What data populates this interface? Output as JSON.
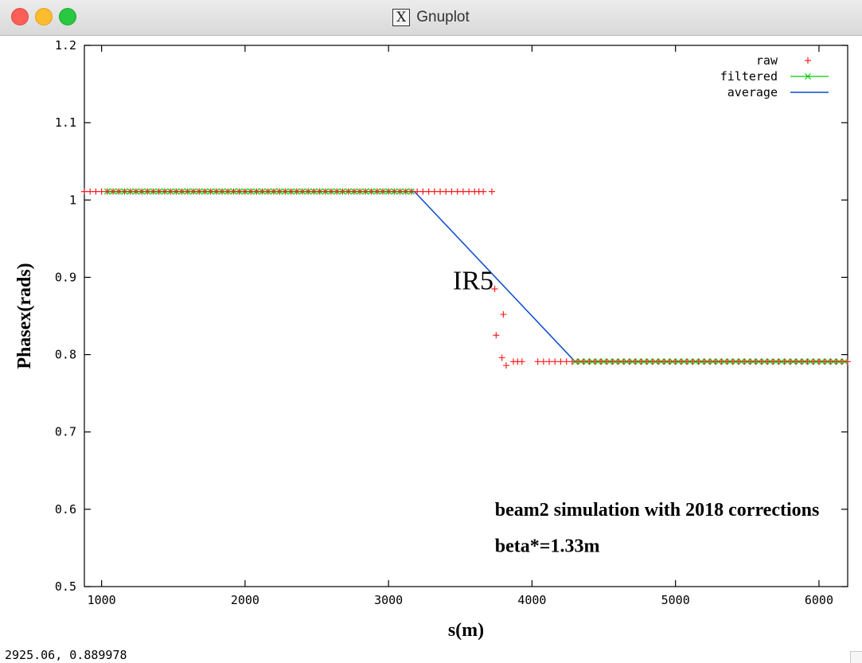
{
  "window": {
    "title": "Gnuplot",
    "icon": "x11-icon",
    "icon_glyph": "X",
    "status_text": "2925.06,  0.889978"
  },
  "chart_data": {
    "type": "scatter",
    "xlabel": "s(m)",
    "ylabel": "Phasex(rads)",
    "xlim": [
      880,
      6200
    ],
    "ylim": [
      0.5,
      1.2
    ],
    "xticks": [
      1000,
      2000,
      3000,
      4000,
      5000,
      6000
    ],
    "yticks": [
      0.5,
      0.6,
      0.7,
      0.8,
      0.9,
      1.0,
      1.1,
      1.2
    ],
    "xtick_labels": [
      "1000",
      "2000",
      "3000",
      "4000",
      "5000",
      "6000"
    ],
    "ytick_labels": [
      "0.5",
      "0.6",
      "0.7",
      "0.8",
      "0.9",
      "1",
      "1.1",
      "1.2"
    ],
    "legend_position": "top-right",
    "grid": false,
    "colors": {
      "raw": "#ff2020",
      "filtered": "#00cc00",
      "average": "#0a4bd0",
      "axis": "#000000"
    },
    "series": [
      {
        "name": "raw",
        "style": "points-plus",
        "points": [
          [
            880,
            1.011
          ],
          [
            920,
            1.011
          ],
          [
            960,
            1.011
          ],
          [
            1000,
            1.011
          ],
          [
            1040,
            1.011
          ],
          [
            1080,
            1.011
          ],
          [
            1120,
            1.011
          ],
          [
            1160,
            1.011
          ],
          [
            1200,
            1.011
          ],
          [
            1240,
            1.011
          ],
          [
            1280,
            1.011
          ],
          [
            1320,
            1.011
          ],
          [
            1360,
            1.011
          ],
          [
            1400,
            1.011
          ],
          [
            1440,
            1.011
          ],
          [
            1480,
            1.011
          ],
          [
            1520,
            1.011
          ],
          [
            1560,
            1.011
          ],
          [
            1600,
            1.011
          ],
          [
            1640,
            1.011
          ],
          [
            1680,
            1.011
          ],
          [
            1720,
            1.011
          ],
          [
            1760,
            1.011
          ],
          [
            1800,
            1.011
          ],
          [
            1840,
            1.011
          ],
          [
            1880,
            1.011
          ],
          [
            1920,
            1.011
          ],
          [
            1960,
            1.011
          ],
          [
            2000,
            1.011
          ],
          [
            2040,
            1.011
          ],
          [
            2080,
            1.011
          ],
          [
            2120,
            1.011
          ],
          [
            2160,
            1.011
          ],
          [
            2200,
            1.011
          ],
          [
            2240,
            1.011
          ],
          [
            2280,
            1.011
          ],
          [
            2320,
            1.011
          ],
          [
            2360,
            1.011
          ],
          [
            2400,
            1.011
          ],
          [
            2440,
            1.011
          ],
          [
            2480,
            1.011
          ],
          [
            2520,
            1.011
          ],
          [
            2560,
            1.011
          ],
          [
            2600,
            1.011
          ],
          [
            2640,
            1.011
          ],
          [
            2680,
            1.011
          ],
          [
            2720,
            1.011
          ],
          [
            2760,
            1.011
          ],
          [
            2800,
            1.011
          ],
          [
            2840,
            1.011
          ],
          [
            2880,
            1.011
          ],
          [
            2920,
            1.011
          ],
          [
            2960,
            1.011
          ],
          [
            3000,
            1.011
          ],
          [
            3040,
            1.011
          ],
          [
            3080,
            1.011
          ],
          [
            3120,
            1.011
          ],
          [
            3160,
            1.011
          ],
          [
            3200,
            1.011
          ],
          [
            3240,
            1.011
          ],
          [
            3280,
            1.011
          ],
          [
            3320,
            1.011
          ],
          [
            3360,
            1.011
          ],
          [
            3400,
            1.011
          ],
          [
            3440,
            1.011
          ],
          [
            3480,
            1.011
          ],
          [
            3520,
            1.011
          ],
          [
            3560,
            1.011
          ],
          [
            3600,
            1.011
          ],
          [
            3630,
            1.011
          ],
          [
            3660,
            1.011
          ],
          [
            3720,
            1.011
          ],
          [
            3740,
            0.885
          ],
          [
            3750,
            0.825
          ],
          [
            3800,
            0.852
          ],
          [
            3790,
            0.796
          ],
          [
            3820,
            0.786
          ],
          [
            3870,
            0.791
          ],
          [
            3900,
            0.791
          ],
          [
            3930,
            0.791
          ],
          [
            4040,
            0.791
          ],
          [
            4080,
            0.791
          ],
          [
            4120,
            0.791
          ],
          [
            4160,
            0.791
          ],
          [
            4200,
            0.791
          ],
          [
            4240,
            0.791
          ],
          [
            4280,
            0.791
          ],
          [
            4320,
            0.791
          ],
          [
            4360,
            0.791
          ],
          [
            4400,
            0.791
          ],
          [
            4440,
            0.791
          ],
          [
            4480,
            0.791
          ],
          [
            4520,
            0.791
          ],
          [
            4560,
            0.791
          ],
          [
            4600,
            0.791
          ],
          [
            4640,
            0.791
          ],
          [
            4680,
            0.791
          ],
          [
            4720,
            0.791
          ],
          [
            4760,
            0.791
          ],
          [
            4800,
            0.791
          ],
          [
            4840,
            0.791
          ],
          [
            4880,
            0.791
          ],
          [
            4920,
            0.791
          ],
          [
            4960,
            0.791
          ],
          [
            5000,
            0.791
          ],
          [
            5040,
            0.791
          ],
          [
            5080,
            0.791
          ],
          [
            5120,
            0.791
          ],
          [
            5160,
            0.791
          ],
          [
            5200,
            0.791
          ],
          [
            5240,
            0.791
          ],
          [
            5280,
            0.791
          ],
          [
            5320,
            0.791
          ],
          [
            5360,
            0.791
          ],
          [
            5400,
            0.791
          ],
          [
            5440,
            0.791
          ],
          [
            5480,
            0.791
          ],
          [
            5520,
            0.791
          ],
          [
            5560,
            0.791
          ],
          [
            5600,
            0.791
          ],
          [
            5640,
            0.791
          ],
          [
            5680,
            0.791
          ],
          [
            5720,
            0.791
          ],
          [
            5760,
            0.791
          ],
          [
            5800,
            0.791
          ],
          [
            5840,
            0.791
          ],
          [
            5880,
            0.791
          ],
          [
            5920,
            0.791
          ],
          [
            5960,
            0.791
          ],
          [
            6000,
            0.791
          ],
          [
            6040,
            0.791
          ],
          [
            6080,
            0.791
          ],
          [
            6120,
            0.791
          ],
          [
            6160,
            0.791
          ],
          [
            6200,
            0.791
          ]
        ]
      },
      {
        "name": "filtered",
        "style": "linespoints-x",
        "points": [
          [
            1040,
            1.011
          ],
          [
            1080,
            1.011
          ],
          [
            1120,
            1.011
          ],
          [
            1160,
            1.011
          ],
          [
            1200,
            1.011
          ],
          [
            1240,
            1.011
          ],
          [
            1280,
            1.011
          ],
          [
            1320,
            1.011
          ],
          [
            1360,
            1.011
          ],
          [
            1400,
            1.011
          ],
          [
            1440,
            1.011
          ],
          [
            1480,
            1.011
          ],
          [
            1520,
            1.011
          ],
          [
            1560,
            1.011
          ],
          [
            1600,
            1.011
          ],
          [
            1640,
            1.011
          ],
          [
            1680,
            1.011
          ],
          [
            1720,
            1.011
          ],
          [
            1760,
            1.011
          ],
          [
            1800,
            1.011
          ],
          [
            1840,
            1.011
          ],
          [
            1880,
            1.011
          ],
          [
            1920,
            1.011
          ],
          [
            1960,
            1.011
          ],
          [
            2000,
            1.011
          ],
          [
            2040,
            1.011
          ],
          [
            2080,
            1.011
          ],
          [
            2120,
            1.011
          ],
          [
            2160,
            1.011
          ],
          [
            2200,
            1.011
          ],
          [
            2240,
            1.011
          ],
          [
            2280,
            1.011
          ],
          [
            2320,
            1.011
          ],
          [
            2360,
            1.011
          ],
          [
            2400,
            1.011
          ],
          [
            2440,
            1.011
          ],
          [
            2480,
            1.011
          ],
          [
            2520,
            1.011
          ],
          [
            2560,
            1.011
          ],
          [
            2600,
            1.011
          ],
          [
            2640,
            1.011
          ],
          [
            2680,
            1.011
          ],
          [
            2720,
            1.011
          ],
          [
            2760,
            1.011
          ],
          [
            2800,
            1.011
          ],
          [
            2840,
            1.011
          ],
          [
            2880,
            1.011
          ],
          [
            2920,
            1.011
          ],
          [
            2960,
            1.011
          ],
          [
            3000,
            1.011
          ],
          [
            3040,
            1.011
          ],
          [
            3080,
            1.011
          ],
          [
            3120,
            1.011
          ],
          [
            3160,
            1.011
          ],
          [
            4300,
            0.791
          ],
          [
            4340,
            0.791
          ],
          [
            4380,
            0.791
          ],
          [
            4420,
            0.791
          ],
          [
            4460,
            0.791
          ],
          [
            4500,
            0.791
          ],
          [
            4540,
            0.791
          ],
          [
            4580,
            0.791
          ],
          [
            4620,
            0.791
          ],
          [
            4660,
            0.791
          ],
          [
            4700,
            0.791
          ],
          [
            4740,
            0.791
          ],
          [
            4780,
            0.791
          ],
          [
            4820,
            0.791
          ],
          [
            4860,
            0.791
          ],
          [
            4900,
            0.791
          ],
          [
            4940,
            0.791
          ],
          [
            4980,
            0.791
          ],
          [
            5020,
            0.791
          ],
          [
            5060,
            0.791
          ],
          [
            5100,
            0.791
          ],
          [
            5140,
            0.791
          ],
          [
            5180,
            0.791
          ],
          [
            5220,
            0.791
          ],
          [
            5260,
            0.791
          ],
          [
            5300,
            0.791
          ],
          [
            5340,
            0.791
          ],
          [
            5380,
            0.791
          ],
          [
            5420,
            0.791
          ],
          [
            5460,
            0.791
          ],
          [
            5500,
            0.791
          ],
          [
            5540,
            0.791
          ],
          [
            5580,
            0.791
          ],
          [
            5620,
            0.791
          ],
          [
            5660,
            0.791
          ],
          [
            5700,
            0.791
          ],
          [
            5740,
            0.791
          ],
          [
            5780,
            0.791
          ],
          [
            5820,
            0.791
          ],
          [
            5860,
            0.791
          ],
          [
            5900,
            0.791
          ],
          [
            5940,
            0.791
          ],
          [
            5980,
            0.791
          ],
          [
            6020,
            0.791
          ],
          [
            6060,
            0.791
          ],
          [
            6100,
            0.791
          ],
          [
            6140,
            0.791
          ],
          [
            6180,
            0.791
          ]
        ]
      },
      {
        "name": "average",
        "style": "line",
        "points": [
          [
            1040,
            1.011
          ],
          [
            3180,
            1.011
          ],
          [
            4300,
            0.791
          ],
          [
            6200,
            0.791
          ]
        ]
      }
    ],
    "annotations": [
      {
        "text": "IR5",
        "x": 3590,
        "y": 0.9
      },
      {
        "text": "beam2 simulation with 2018 corrections",
        "x": 3880,
        "y": 0.6
      },
      {
        "text": "beta*=1.33m",
        "x": 3880,
        "y": 0.553
      }
    ]
  }
}
